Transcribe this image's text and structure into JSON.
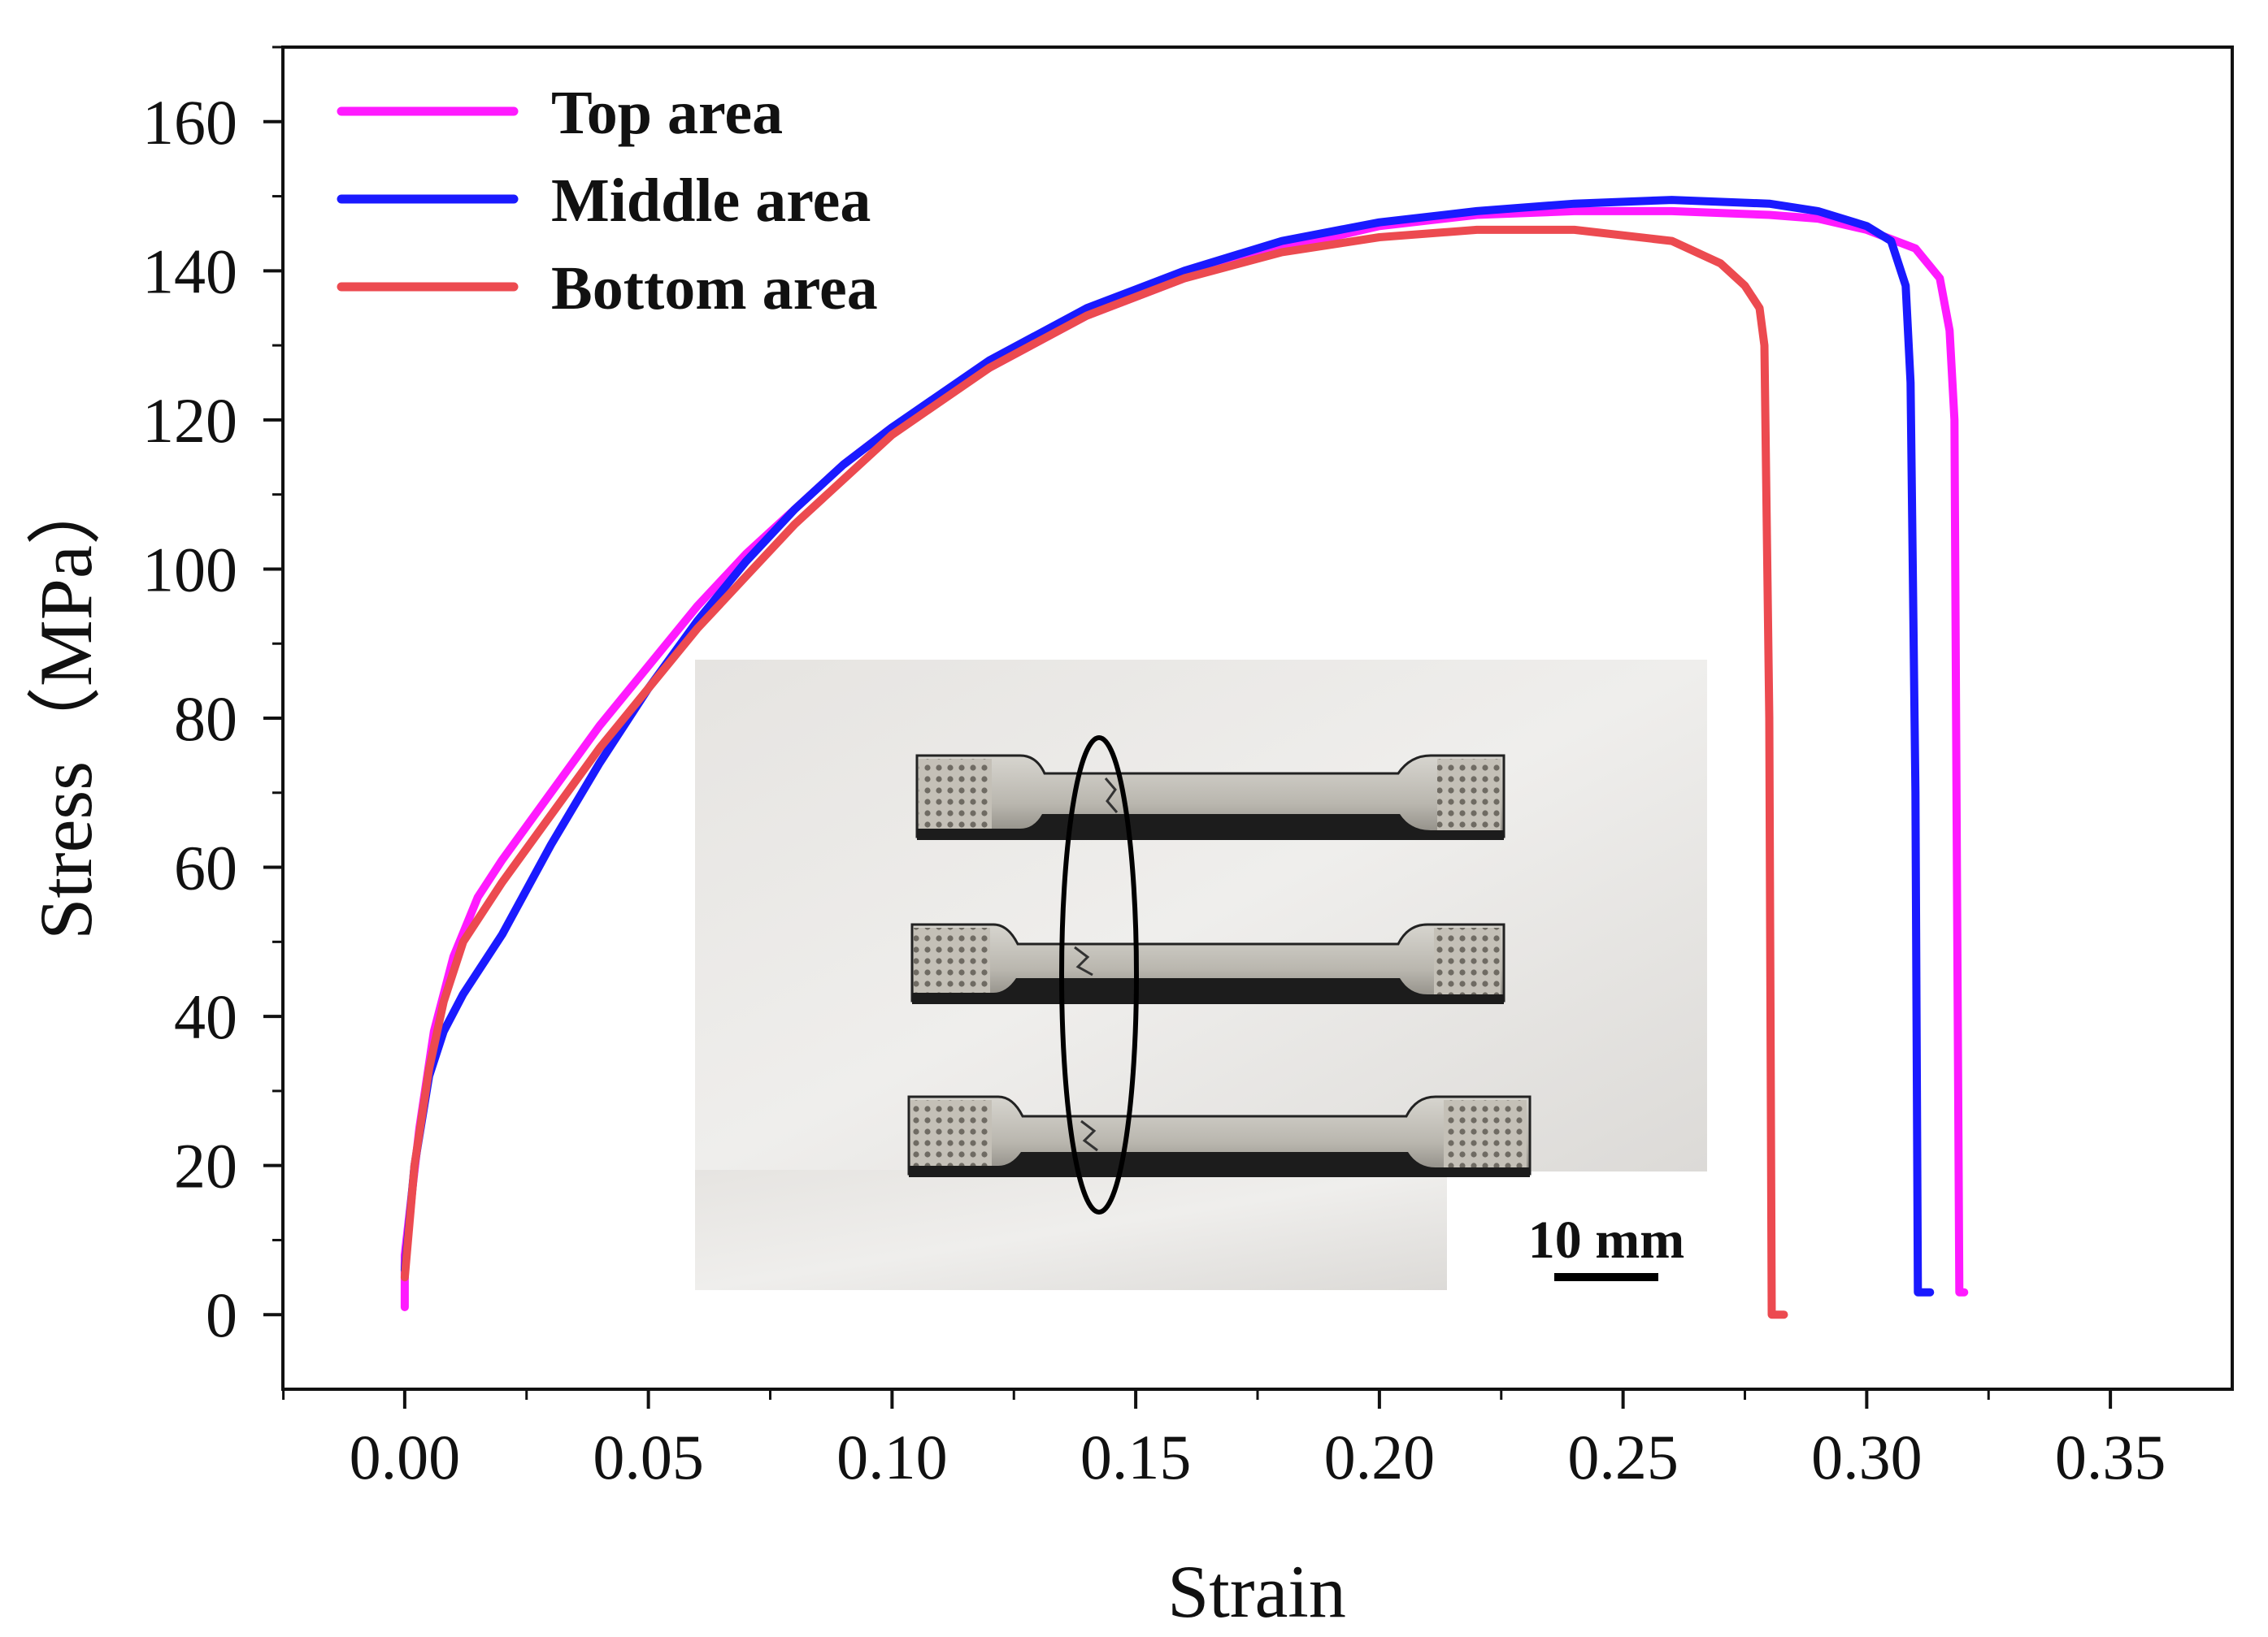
{
  "chart_data": {
    "type": "line",
    "xlabel": "Strain",
    "ylabel": "Stress（MPa）",
    "xlim": [
      -0.025,
      0.375
    ],
    "ylim": [
      -10,
      170
    ],
    "xticks": [
      "0.00",
      "0.05",
      "0.10",
      "0.15",
      "0.20",
      "0.25",
      "0.30",
      "0.35"
    ],
    "yticks": [
      "0",
      "20",
      "40",
      "60",
      "80",
      "100",
      "120",
      "140",
      "160"
    ],
    "grid": false,
    "legend_position": "top-left",
    "series": [
      {
        "name": "Top area",
        "color": "#ff1aff",
        "x": [
          0.0,
          0.0,
          0.003,
          0.006,
          0.01,
          0.015,
          0.02,
          0.03,
          0.04,
          0.05,
          0.06,
          0.07,
          0.08,
          0.09,
          0.1,
          0.12,
          0.14,
          0.16,
          0.18,
          0.2,
          0.22,
          0.24,
          0.26,
          0.28,
          0.29,
          0.3,
          0.31,
          0.315,
          0.317,
          0.318,
          0.3185,
          0.319,
          0.32
        ],
        "y": [
          1,
          8,
          25,
          38,
          48,
          56,
          61,
          70,
          79,
          87,
          95,
          102,
          108,
          114,
          119,
          127,
          134,
          139,
          143,
          146,
          147.5,
          148,
          148,
          147.5,
          147,
          145.5,
          143,
          139,
          132,
          120,
          60,
          3,
          3
        ]
      },
      {
        "name": "Middle area",
        "color": "#1a1aff",
        "x": [
          0.0,
          0.002,
          0.005,
          0.008,
          0.012,
          0.02,
          0.03,
          0.04,
          0.05,
          0.06,
          0.07,
          0.08,
          0.09,
          0.1,
          0.12,
          0.14,
          0.16,
          0.18,
          0.2,
          0.22,
          0.24,
          0.26,
          0.28,
          0.29,
          0.3,
          0.305,
          0.308,
          0.309,
          0.31,
          0.3105,
          0.311,
          0.313
        ],
        "y": [
          6,
          20,
          32,
          38,
          43,
          51,
          63,
          74,
          84,
          93,
          101,
          108,
          114,
          119,
          128,
          135,
          140,
          144,
          146.5,
          148,
          149,
          149.5,
          149,
          148,
          146,
          144,
          138,
          125,
          70,
          3,
          3,
          3
        ]
      },
      {
        "name": "Bottom area",
        "color": "#ec4a50",
        "x": [
          0.0,
          0.002,
          0.005,
          0.008,
          0.012,
          0.02,
          0.03,
          0.04,
          0.05,
          0.06,
          0.07,
          0.08,
          0.09,
          0.1,
          0.12,
          0.14,
          0.16,
          0.18,
          0.2,
          0.22,
          0.24,
          0.26,
          0.27,
          0.275,
          0.278,
          0.279,
          0.28,
          0.2805,
          0.281,
          0.283
        ],
        "y": [
          5,
          20,
          33,
          42,
          50,
          58,
          67,
          76,
          84,
          92,
          99,
          106,
          112,
          118,
          127,
          134,
          139,
          142.5,
          144.5,
          145.5,
          145.5,
          144,
          141,
          138,
          135,
          130,
          80,
          0,
          0,
          0
        ]
      }
    ],
    "inset": {
      "description": "tensile-specimens-photo",
      "scale_bar_label": "10 mm"
    }
  }
}
